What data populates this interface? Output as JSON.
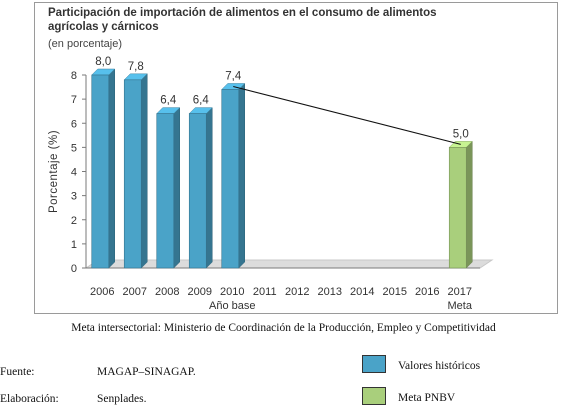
{
  "chart_data": {
    "type": "bar",
    "title": "Participación de importación de alimentos en el consumo de alimentos agrícolas y cárnicos",
    "subtitle": "(en porcentaje)",
    "ylabel": "Porcentaje (%)",
    "ylim": [
      0,
      8
    ],
    "yticks": [
      "0",
      "1",
      "2",
      "3",
      "4",
      "5",
      "6",
      "7",
      "8"
    ],
    "categories": [
      "2006",
      "2007",
      "2008",
      "2009",
      "2010",
      "2011",
      "2012",
      "2013",
      "2014",
      "2015",
      "2016",
      "2017"
    ],
    "category_sublabels": {
      "2010": "Año base",
      "2017": "Meta"
    },
    "series": [
      {
        "name": "Valores históricos",
        "color": "#4aa3c8",
        "values": [
          8.0,
          7.8,
          6.4,
          6.4,
          7.4,
          null,
          null,
          null,
          null,
          null,
          null,
          null
        ]
      },
      {
        "name": "Meta PNBV",
        "color": "#a9cf7c",
        "values": [
          null,
          null,
          null,
          null,
          null,
          null,
          null,
          null,
          null,
          null,
          null,
          5.0
        ]
      }
    ],
    "data_labels": [
      "8,0",
      "7,8",
      "6,4",
      "6,4",
      "7,4",
      "",
      "",
      "",
      "",
      "",
      "",
      "5,0"
    ],
    "trend_line": {
      "from": "2010",
      "to": "2017"
    },
    "grid": false
  },
  "note": "Meta intersectorial: Ministerio de Coordinación de la Producción, Empleo y Competitividad",
  "footer": {
    "source_label": "Fuente:",
    "source_value": "MAGAP–SINAGAP.",
    "elaboration_label": "Elaboración:",
    "elaboration_value": "Senplades."
  },
  "legend": [
    {
      "label": "Valores históricos",
      "color": "#4aa3c8"
    },
    {
      "label": "Meta PNBV",
      "color": "#a9cf7c"
    }
  ]
}
